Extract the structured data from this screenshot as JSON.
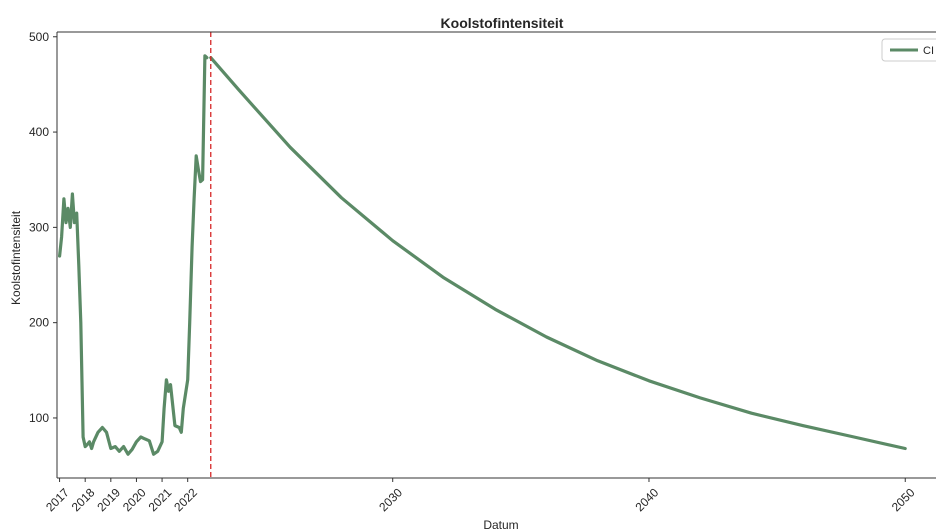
{
  "chart_data": {
    "type": "line",
    "title": "Koolstofintensiteit",
    "xlabel": "Datum",
    "ylabel": "Koolstofintensiteit",
    "xlim": [
      2016.9,
      2051.2
    ],
    "ylim": [
      37,
      505
    ],
    "x_ticks": [
      2017,
      2018,
      2019,
      2020,
      2021,
      2022,
      2030,
      2040,
      2050
    ],
    "x_tick_labels": [
      "2017",
      "2018",
      "2019",
      "2020",
      "2021",
      "2022",
      "2030",
      "2040",
      "2050"
    ],
    "y_ticks": [
      100,
      200,
      300,
      400,
      500
    ],
    "y_tick_labels": [
      "100",
      "200",
      "300",
      "400",
      "500"
    ],
    "grid": false,
    "legend_position": "top-right",
    "vline": {
      "x": 2022.9,
      "color": "#d62728",
      "style": "dashed"
    },
    "series": [
      {
        "name": "CI",
        "color": "#5b8a66",
        "x": [
          2017.0,
          2017.08,
          2017.17,
          2017.25,
          2017.33,
          2017.42,
          2017.5,
          2017.58,
          2017.67,
          2017.75,
          2017.83,
          2017.92,
          2018.0,
          2018.08,
          2018.17,
          2018.25,
          2018.33,
          2018.5,
          2018.67,
          2018.83,
          2019.0,
          2019.17,
          2019.33,
          2019.5,
          2019.67,
          2019.83,
          2020.0,
          2020.17,
          2020.33,
          2020.5,
          2020.67,
          2020.83,
          2021.0,
          2021.08,
          2021.17,
          2021.25,
          2021.33,
          2021.5,
          2021.67,
          2021.75,
          2021.83,
          2022.0,
          2022.08,
          2022.17,
          2022.25,
          2022.33,
          2022.42,
          2022.5,
          2022.58,
          2022.67,
          2022.75
        ],
        "values": [
          270,
          290,
          330,
          305,
          320,
          300,
          335,
          305,
          315,
          260,
          200,
          80,
          70,
          72,
          75,
          68,
          75,
          85,
          90,
          85,
          68,
          70,
          65,
          70,
          62,
          67,
          75,
          80,
          78,
          76,
          62,
          65,
          75,
          110,
          140,
          128,
          135,
          92,
          90,
          85,
          110,
          140,
          200,
          280,
          330,
          375,
          360,
          348,
          350,
          480,
          478
        ]
      },
      {
        "name": "CI-forecast",
        "color": "#5b8a66",
        "x": [
          2022.9,
          2024,
          2026,
          2028,
          2030,
          2032,
          2034,
          2036,
          2038,
          2040,
          2042,
          2044,
          2046,
          2048,
          2050
        ],
        "values": [
          478,
          444,
          384,
          331,
          286,
          247,
          214,
          185,
          160,
          139,
          121,
          105,
          92,
          80,
          68
        ]
      }
    ]
  }
}
